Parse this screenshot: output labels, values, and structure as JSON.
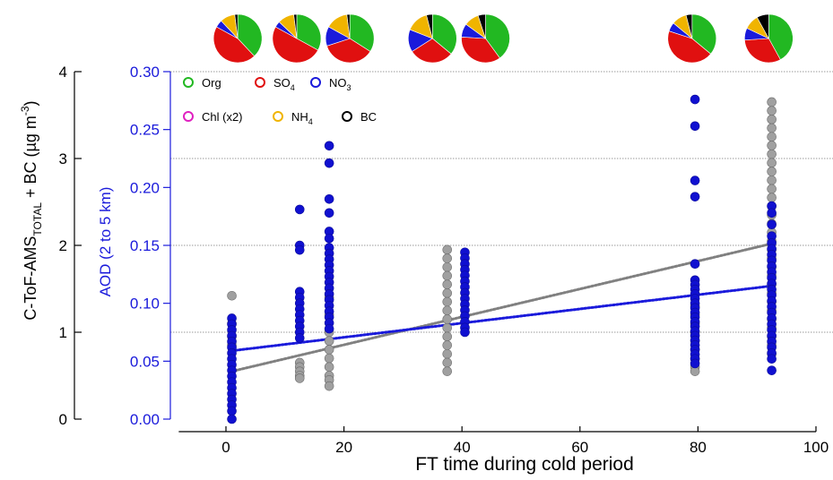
{
  "chart_data": {
    "type": "scatter",
    "xlabel": "FT time during cold period",
    "x_ticks": [
      "0",
      "20",
      "40",
      "60",
      "80",
      "100"
    ],
    "xlim": [
      -8,
      100
    ],
    "left_axis": {
      "label_main": "C-ToF-AMS",
      "label_sub": "TOTAL",
      "label_rest": " + BC (µg m",
      "label_sup": "-3",
      "label_close": ")",
      "ticks": [
        "0",
        "1",
        "2",
        "3",
        "4"
      ],
      "ylim": [
        0,
        4
      ],
      "color": "#000000"
    },
    "right_axis": {
      "label": "AOD (2 to 5 km)",
      "ticks": [
        "0.00",
        "0.05",
        "0.10",
        "0.15",
        "0.20",
        "0.25",
        "0.30"
      ],
      "ylim": [
        0,
        0.3
      ],
      "color": "#1a1adb"
    },
    "gridlines_y_left": [
      1,
      2,
      3,
      4
    ],
    "legend": {
      "placement": "top-left",
      "entries": [
        {
          "label": "Org",
          "color": "#22b822"
        },
        {
          "label": "SO",
          "sub": "4",
          "color": "#e01010"
        },
        {
          "label": "NO",
          "sub": "3",
          "color": "#1a1adb"
        },
        {
          "label": "Chl (x2)",
          "color": "#e020c0"
        },
        {
          "label": "NH",
          "sub": "4",
          "color": "#f0b400"
        },
        {
          "label": "BC",
          "color": "#000000"
        }
      ]
    },
    "series": [
      {
        "axis": "left",
        "color": "#a0a0a0",
        "points": [
          {
            "x": 1,
            "y": 1.42
          },
          {
            "x": 1,
            "y": 1.1
          },
          {
            "x": 1,
            "y": 0.95
          },
          {
            "x": 1,
            "y": 0.85
          },
          {
            "x": 12.5,
            "y": 0.65
          },
          {
            "x": 12.5,
            "y": 0.6
          },
          {
            "x": 12.5,
            "y": 0.55
          },
          {
            "x": 12.5,
            "y": 0.5
          },
          {
            "x": 12.5,
            "y": 0.47
          },
          {
            "x": 17.5,
            "y": 1.4
          },
          {
            "x": 17.5,
            "y": 1.2
          },
          {
            "x": 17.5,
            "y": 1.0
          },
          {
            "x": 17.5,
            "y": 0.9
          },
          {
            "x": 17.5,
            "y": 0.8
          },
          {
            "x": 17.5,
            "y": 0.7
          },
          {
            "x": 17.5,
            "y": 0.6
          },
          {
            "x": 17.5,
            "y": 0.5
          },
          {
            "x": 17.5,
            "y": 0.45
          },
          {
            "x": 17.5,
            "y": 0.38
          },
          {
            "x": 37.5,
            "y": 1.95
          },
          {
            "x": 37.5,
            "y": 1.85
          },
          {
            "x": 37.5,
            "y": 1.75
          },
          {
            "x": 37.5,
            "y": 1.65
          },
          {
            "x": 37.5,
            "y": 1.55
          },
          {
            "x": 37.5,
            "y": 1.45
          },
          {
            "x": 37.5,
            "y": 1.35
          },
          {
            "x": 37.5,
            "y": 1.25
          },
          {
            "x": 37.5,
            "y": 1.15
          },
          {
            "x": 37.5,
            "y": 1.05
          },
          {
            "x": 37.5,
            "y": 0.95
          },
          {
            "x": 37.5,
            "y": 0.85
          },
          {
            "x": 37.5,
            "y": 0.75
          },
          {
            "x": 37.5,
            "y": 0.65
          },
          {
            "x": 37.5,
            "y": 0.55
          },
          {
            "x": 79.5,
            "y": 1.3
          },
          {
            "x": 79.5,
            "y": 1.2
          },
          {
            "x": 79.5,
            "y": 1.1
          },
          {
            "x": 79.5,
            "y": 1.0
          },
          {
            "x": 79.5,
            "y": 0.9
          },
          {
            "x": 79.5,
            "y": 0.8
          },
          {
            "x": 79.5,
            "y": 0.7
          },
          {
            "x": 79.5,
            "y": 0.6
          },
          {
            "x": 79.5,
            "y": 0.55
          },
          {
            "x": 92.5,
            "y": 3.65
          },
          {
            "x": 92.5,
            "y": 3.55
          },
          {
            "x": 92.5,
            "y": 3.45
          },
          {
            "x": 92.5,
            "y": 3.35
          },
          {
            "x": 92.5,
            "y": 3.25
          },
          {
            "x": 92.5,
            "y": 3.15
          },
          {
            "x": 92.5,
            "y": 3.05
          },
          {
            "x": 92.5,
            "y": 2.95
          },
          {
            "x": 92.5,
            "y": 2.85
          },
          {
            "x": 92.5,
            "y": 2.75
          },
          {
            "x": 92.5,
            "y": 2.65
          },
          {
            "x": 92.5,
            "y": 2.55
          },
          {
            "x": 92.5,
            "y": 2.45
          },
          {
            "x": 92.5,
            "y": 2.35
          },
          {
            "x": 92.5,
            "y": 2.25
          },
          {
            "x": 92.5,
            "y": 2.15
          },
          {
            "x": 92.5,
            "y": 2.05
          },
          {
            "x": 92.5,
            "y": 1.95
          },
          {
            "x": 92.5,
            "y": 1.85
          },
          {
            "x": 92.5,
            "y": 1.75
          },
          {
            "x": 92.5,
            "y": 1.65
          },
          {
            "x": 92.5,
            "y": 1.55
          },
          {
            "x": 92.5,
            "y": 1.45
          },
          {
            "x": 92.5,
            "y": 1.35
          },
          {
            "x": 92.5,
            "y": 1.25
          },
          {
            "x": 92.5,
            "y": 1.15
          },
          {
            "x": 92.5,
            "y": 1.05
          },
          {
            "x": 92.5,
            "y": 0.95
          },
          {
            "x": 92.5,
            "y": 0.85
          },
          {
            "x": 92.5,
            "y": 0.75
          }
        ],
        "trend": {
          "x": [
            1,
            92.5
          ],
          "y": [
            0.55,
            2.02
          ]
        }
      },
      {
        "axis": "right",
        "color": "#1010d0",
        "points": [
          {
            "x": 1,
            "y": 0.087
          },
          {
            "x": 1,
            "y": 0.082
          },
          {
            "x": 1,
            "y": 0.077
          },
          {
            "x": 1,
            "y": 0.072
          },
          {
            "x": 1,
            "y": 0.067
          },
          {
            "x": 1,
            "y": 0.062
          },
          {
            "x": 1,
            "y": 0.057
          },
          {
            "x": 1,
            "y": 0.052
          },
          {
            "x": 1,
            "y": 0.047
          },
          {
            "x": 1,
            "y": 0.042
          },
          {
            "x": 1,
            "y": 0.037
          },
          {
            "x": 1,
            "y": 0.032
          },
          {
            "x": 1,
            "y": 0.027
          },
          {
            "x": 1,
            "y": 0.022
          },
          {
            "x": 1,
            "y": 0.017
          },
          {
            "x": 1,
            "y": 0.012
          },
          {
            "x": 1,
            "y": 0.007
          },
          {
            "x": 1,
            "y": 0.0
          },
          {
            "x": 12.5,
            "y": 0.181
          },
          {
            "x": 12.5,
            "y": 0.15
          },
          {
            "x": 12.5,
            "y": 0.146
          },
          {
            "x": 12.5,
            "y": 0.11
          },
          {
            "x": 12.5,
            "y": 0.105
          },
          {
            "x": 12.5,
            "y": 0.1
          },
          {
            "x": 12.5,
            "y": 0.095
          },
          {
            "x": 12.5,
            "y": 0.09
          },
          {
            "x": 12.5,
            "y": 0.085
          },
          {
            "x": 12.5,
            "y": 0.08
          },
          {
            "x": 12.5,
            "y": 0.075
          },
          {
            "x": 12.5,
            "y": 0.07
          },
          {
            "x": 17.5,
            "y": 0.236
          },
          {
            "x": 17.5,
            "y": 0.221
          },
          {
            "x": 17.5,
            "y": 0.19
          },
          {
            "x": 17.5,
            "y": 0.178
          },
          {
            "x": 17.5,
            "y": 0.162
          },
          {
            "x": 17.5,
            "y": 0.156
          },
          {
            "x": 17.5,
            "y": 0.148
          },
          {
            "x": 17.5,
            "y": 0.143
          },
          {
            "x": 17.5,
            "y": 0.138
          },
          {
            "x": 17.5,
            "y": 0.133
          },
          {
            "x": 17.5,
            "y": 0.128
          },
          {
            "x": 17.5,
            "y": 0.123
          },
          {
            "x": 17.5,
            "y": 0.118
          },
          {
            "x": 17.5,
            "y": 0.113
          },
          {
            "x": 17.5,
            "y": 0.108
          },
          {
            "x": 17.5,
            "y": 0.103
          },
          {
            "x": 17.5,
            "y": 0.098
          },
          {
            "x": 17.5,
            "y": 0.093
          },
          {
            "x": 17.5,
            "y": 0.088
          },
          {
            "x": 17.5,
            "y": 0.083
          },
          {
            "x": 17.5,
            "y": 0.078
          },
          {
            "x": 40.5,
            "y": 0.144
          },
          {
            "x": 40.5,
            "y": 0.139
          },
          {
            "x": 40.5,
            "y": 0.134
          },
          {
            "x": 40.5,
            "y": 0.129
          },
          {
            "x": 40.5,
            "y": 0.124
          },
          {
            "x": 40.5,
            "y": 0.119
          },
          {
            "x": 40.5,
            "y": 0.114
          },
          {
            "x": 40.5,
            "y": 0.109
          },
          {
            "x": 40.5,
            "y": 0.104
          },
          {
            "x": 40.5,
            "y": 0.099
          },
          {
            "x": 40.5,
            "y": 0.094
          },
          {
            "x": 40.5,
            "y": 0.089
          },
          {
            "x": 40.5,
            "y": 0.084
          },
          {
            "x": 40.5,
            "y": 0.079
          },
          {
            "x": 40.5,
            "y": 0.075
          },
          {
            "x": 79.5,
            "y": 0.276
          },
          {
            "x": 79.5,
            "y": 0.253
          },
          {
            "x": 79.5,
            "y": 0.206
          },
          {
            "x": 79.5,
            "y": 0.192
          },
          {
            "x": 79.5,
            "y": 0.134
          },
          {
            "x": 79.5,
            "y": 0.12
          },
          {
            "x": 79.5,
            "y": 0.116
          },
          {
            "x": 79.5,
            "y": 0.112
          },
          {
            "x": 79.5,
            "y": 0.108
          },
          {
            "x": 79.5,
            "y": 0.104
          },
          {
            "x": 79.5,
            "y": 0.1
          },
          {
            "x": 79.5,
            "y": 0.096
          },
          {
            "x": 79.5,
            "y": 0.092
          },
          {
            "x": 79.5,
            "y": 0.088
          },
          {
            "x": 79.5,
            "y": 0.084
          },
          {
            "x": 79.5,
            "y": 0.08
          },
          {
            "x": 79.5,
            "y": 0.076
          },
          {
            "x": 79.5,
            "y": 0.072
          },
          {
            "x": 79.5,
            "y": 0.068
          },
          {
            "x": 79.5,
            "y": 0.064
          },
          {
            "x": 79.5,
            "y": 0.06
          },
          {
            "x": 79.5,
            "y": 0.056
          },
          {
            "x": 79.5,
            "y": 0.052
          },
          {
            "x": 79.5,
            "y": 0.048
          },
          {
            "x": 92.5,
            "y": 0.184
          },
          {
            "x": 92.5,
            "y": 0.178
          },
          {
            "x": 92.5,
            "y": 0.168
          },
          {
            "x": 92.5,
            "y": 0.158
          },
          {
            "x": 92.5,
            "y": 0.152
          },
          {
            "x": 92.5,
            "y": 0.147
          },
          {
            "x": 92.5,
            "y": 0.142
          },
          {
            "x": 92.5,
            "y": 0.137
          },
          {
            "x": 92.5,
            "y": 0.132
          },
          {
            "x": 92.5,
            "y": 0.127
          },
          {
            "x": 92.5,
            "y": 0.122
          },
          {
            "x": 92.5,
            "y": 0.117
          },
          {
            "x": 92.5,
            "y": 0.112
          },
          {
            "x": 92.5,
            "y": 0.107
          },
          {
            "x": 92.5,
            "y": 0.102
          },
          {
            "x": 92.5,
            "y": 0.097
          },
          {
            "x": 92.5,
            "y": 0.092
          },
          {
            "x": 92.5,
            "y": 0.087
          },
          {
            "x": 92.5,
            "y": 0.082
          },
          {
            "x": 92.5,
            "y": 0.077
          },
          {
            "x": 92.5,
            "y": 0.072
          },
          {
            "x": 92.5,
            "y": 0.067
          },
          {
            "x": 92.5,
            "y": 0.062
          },
          {
            "x": 92.5,
            "y": 0.057
          },
          {
            "x": 92.5,
            "y": 0.052
          },
          {
            "x": 92.5,
            "y": 0.042
          }
        ],
        "trend": {
          "x": [
            1,
            92.5
          ],
          "y": [
            0.059,
            0.115
          ]
        }
      }
    ],
    "pie_insets": [
      {
        "x": 2,
        "slices": [
          {
            "label": "Org",
            "value": 38,
            "color": "#22b822"
          },
          {
            "label": "SO4",
            "value": 45,
            "color": "#e01010"
          },
          {
            "label": "NO3",
            "value": 5,
            "color": "#1a1adb"
          },
          {
            "label": "NH4",
            "value": 10,
            "color": "#f0b400"
          },
          {
            "label": "BC",
            "value": 2,
            "color": "#000000"
          }
        ]
      },
      {
        "x": 12,
        "slices": [
          {
            "label": "Org",
            "value": 33,
            "color": "#22b822"
          },
          {
            "label": "SO4",
            "value": 50,
            "color": "#e01010"
          },
          {
            "label": "NO3",
            "value": 4,
            "color": "#1a1adb"
          },
          {
            "label": "NH4",
            "value": 11,
            "color": "#f0b400"
          },
          {
            "label": "BC",
            "value": 2,
            "color": "#000000"
          }
        ]
      },
      {
        "x": 21,
        "slices": [
          {
            "label": "Org",
            "value": 34,
            "color": "#22b822"
          },
          {
            "label": "SO4",
            "value": 36,
            "color": "#e01010"
          },
          {
            "label": "NO3",
            "value": 13,
            "color": "#1a1adb"
          },
          {
            "label": "NH4",
            "value": 15,
            "color": "#f0b400"
          },
          {
            "label": "BC",
            "value": 2,
            "color": "#000000"
          }
        ]
      },
      {
        "x": 35,
        "slices": [
          {
            "label": "Org",
            "value": 36,
            "color": "#22b822"
          },
          {
            "label": "SO4",
            "value": 30,
            "color": "#e01010"
          },
          {
            "label": "NO3",
            "value": 15,
            "color": "#1a1adb"
          },
          {
            "label": "NH4",
            "value": 15,
            "color": "#f0b400"
          },
          {
            "label": "BC",
            "value": 4,
            "color": "#000000"
          }
        ]
      },
      {
        "x": 44,
        "slices": [
          {
            "label": "Org",
            "value": 40,
            "color": "#22b822"
          },
          {
            "label": "SO4",
            "value": 36,
            "color": "#e01010"
          },
          {
            "label": "NO3",
            "value": 9,
            "color": "#1a1adb"
          },
          {
            "label": "NH4",
            "value": 10,
            "color": "#f0b400"
          },
          {
            "label": "BC",
            "value": 5,
            "color": "#000000"
          }
        ]
      },
      {
        "x": 79,
        "slices": [
          {
            "label": "Org",
            "value": 36,
            "color": "#22b822"
          },
          {
            "label": "SO4",
            "value": 44,
            "color": "#e01010"
          },
          {
            "label": "NO3",
            "value": 6,
            "color": "#1a1adb"
          },
          {
            "label": "NH4",
            "value": 10,
            "color": "#f0b400"
          },
          {
            "label": "BC",
            "value": 4,
            "color": "#000000"
          }
        ]
      },
      {
        "x": 92,
        "slices": [
          {
            "label": "Org",
            "value": 42,
            "color": "#22b822"
          },
          {
            "label": "SO4",
            "value": 32,
            "color": "#e01010"
          },
          {
            "label": "NO3",
            "value": 8,
            "color": "#1a1adb"
          },
          {
            "label": "NH4",
            "value": 10,
            "color": "#f0b400"
          },
          {
            "label": "BC",
            "value": 8,
            "color": "#000000"
          }
        ]
      }
    ]
  }
}
